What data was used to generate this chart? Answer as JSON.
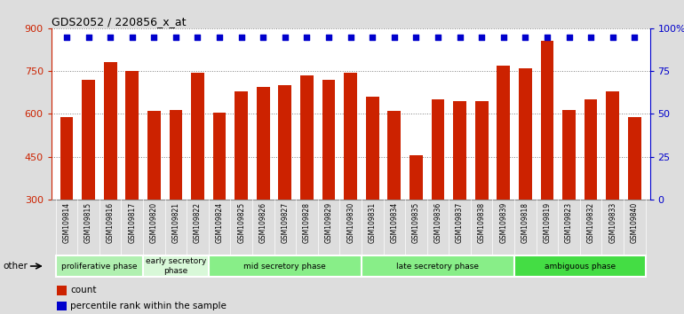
{
  "title": "GDS2052 / 220856_x_at",
  "samples": [
    "GSM109814",
    "GSM109815",
    "GSM109816",
    "GSM109817",
    "GSM109820",
    "GSM109821",
    "GSM109822",
    "GSM109824",
    "GSM109825",
    "GSM109826",
    "GSM109827",
    "GSM109828",
    "GSM109829",
    "GSM109830",
    "GSM109831",
    "GSM109834",
    "GSM109835",
    "GSM109836",
    "GSM109837",
    "GSM109838",
    "GSM109839",
    "GSM109818",
    "GSM109819",
    "GSM109823",
    "GSM109832",
    "GSM109833",
    "GSM109840"
  ],
  "counts": [
    590,
    720,
    780,
    750,
    610,
    615,
    745,
    605,
    680,
    695,
    700,
    735,
    720,
    745,
    660,
    610,
    455,
    650,
    645,
    645,
    770,
    760,
    855,
    615,
    650,
    680,
    590
  ],
  "percentile_vals": [
    95,
    95,
    95,
    95,
    95,
    95,
    95,
    95,
    95,
    95,
    95,
    95,
    95,
    95,
    95,
    95,
    95,
    95,
    95,
    95,
    95,
    95,
    95,
    95,
    95,
    95,
    95
  ],
  "bar_color": "#cc2200",
  "dot_color": "#0000cc",
  "phases": [
    {
      "label": "proliferative phase",
      "start": 0,
      "end": 3,
      "color": "#b0f0b0"
    },
    {
      "label": "early secretory\nphase",
      "start": 4,
      "end": 6,
      "color": "#d8f8d8"
    },
    {
      "label": "mid secretory phase",
      "start": 7,
      "end": 13,
      "color": "#88ee88"
    },
    {
      "label": "late secretory phase",
      "start": 14,
      "end": 20,
      "color": "#88ee88"
    },
    {
      "label": "ambiguous phase",
      "start": 21,
      "end": 26,
      "color": "#44dd44"
    }
  ],
  "ylim_left": [
    300,
    900
  ],
  "yticks_left": [
    300,
    450,
    600,
    750,
    900
  ],
  "ylim_right": [
    0,
    100
  ],
  "yticks_right": [
    0,
    25,
    50,
    75,
    100
  ],
  "bg_color": "#dddddd",
  "plot_bg": "#ffffff",
  "xticklabel_bg": "#d0d0d0"
}
